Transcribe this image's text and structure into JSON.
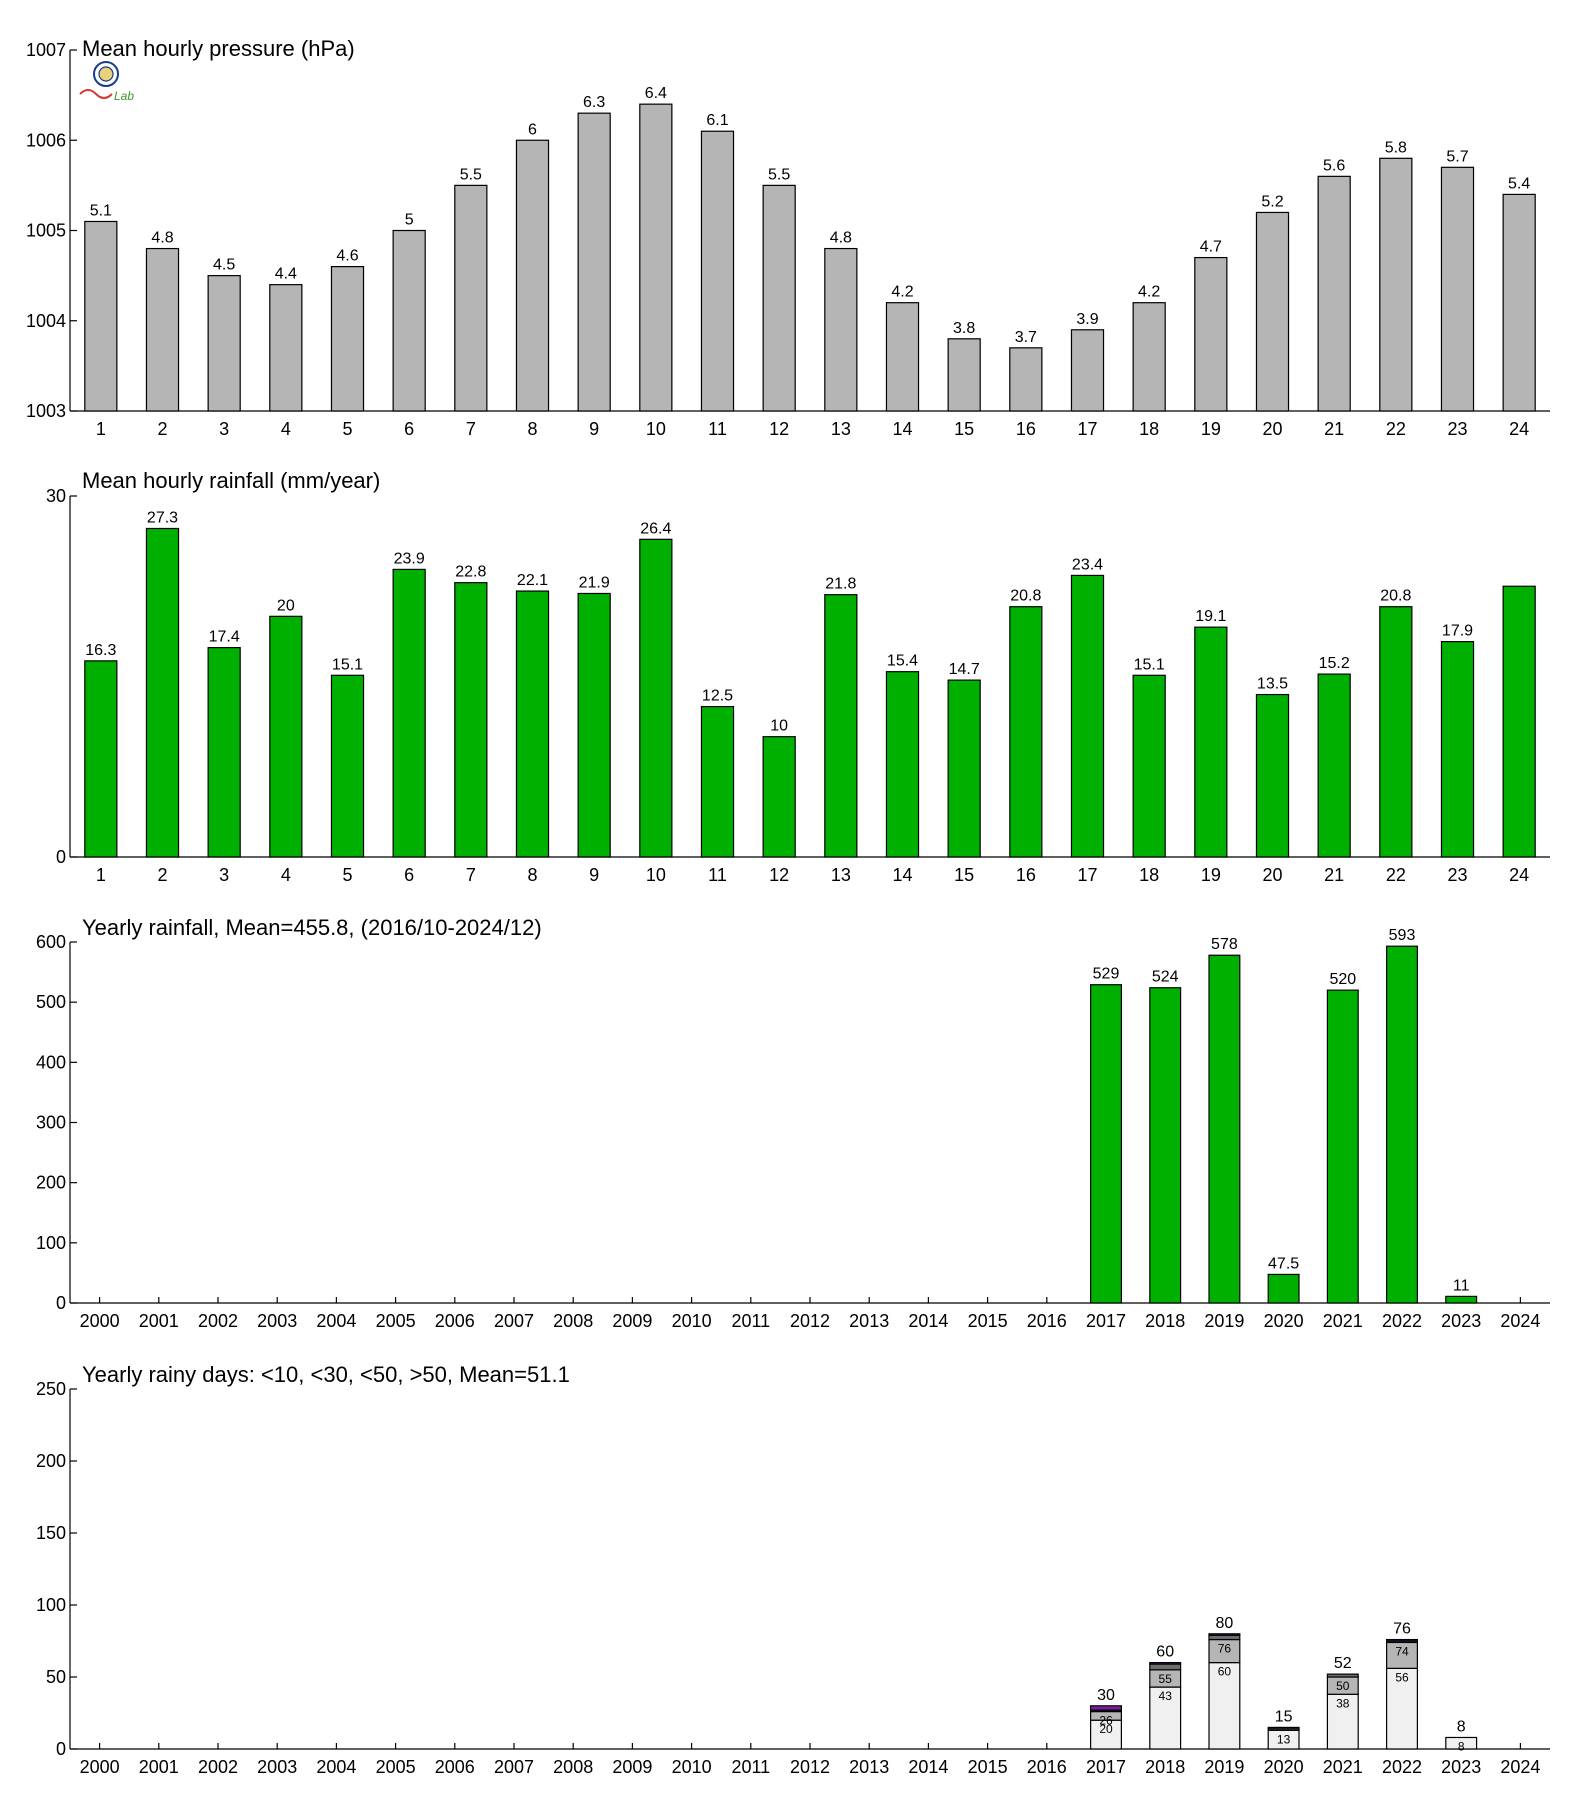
{
  "colors": {
    "pressure_bar": "#b5b5b5",
    "rain_bar": "#00b000",
    "days_lt10": "#f0f0f0",
    "days_lt30": "#b5b5b5",
    "days_lt50": "#6e6e6e",
    "days_gt50": "#7a1fa2"
  },
  "logo": {
    "icon": "station-seal-logo",
    "text": "Lab"
  },
  "chart_data": [
    {
      "type": "bar",
      "title": "Mean hourly pressure (hPa)",
      "categories": [
        "1",
        "2",
        "3",
        "4",
        "5",
        "6",
        "7",
        "8",
        "9",
        "10",
        "11",
        "12",
        "13",
        "14",
        "15",
        "16",
        "17",
        "18",
        "19",
        "20",
        "21",
        "22",
        "23",
        "24"
      ],
      "values": [
        1005.1,
        1004.8,
        1004.5,
        1004.4,
        1004.6,
        1005.0,
        1005.5,
        1006.0,
        1006.3,
        1006.4,
        1006.1,
        1005.5,
        1004.8,
        1004.2,
        1003.8,
        1003.7,
        1003.9,
        1004.2,
        1004.7,
        1005.2,
        1005.6,
        1005.8,
        1005.7,
        1005.4
      ],
      "labels": [
        "5.1",
        "4.8",
        "4.5",
        "4.4",
        "4.6",
        "5",
        "5.5",
        "6",
        "6.3",
        "6.4",
        "6.1",
        "5.5",
        "4.8",
        "4.2",
        "3.8",
        "3.7",
        "3.9",
        "4.2",
        "4.7",
        "5.2",
        "5.6",
        "5.8",
        "5.7",
        "5.4"
      ],
      "ylim": [
        1003,
        1007
      ],
      "yticks": [
        "1003",
        "1004",
        "1005",
        "1006",
        "1007"
      ],
      "color": "pressure_bar"
    },
    {
      "type": "bar",
      "title": "Mean hourly rainfall (mm/year)",
      "categories": [
        "1",
        "2",
        "3",
        "4",
        "5",
        "6",
        "7",
        "8",
        "9",
        "10",
        "11",
        "12",
        "13",
        "14",
        "15",
        "16",
        "17",
        "18",
        "19",
        "20",
        "21",
        "22",
        "23",
        "24"
      ],
      "values": [
        16.3,
        27.3,
        17.4,
        20,
        15.1,
        23.9,
        22.8,
        22.1,
        21.9,
        26.4,
        12.5,
        10,
        21.8,
        15.4,
        14.7,
        20.8,
        23.4,
        15.1,
        19.1,
        13.5,
        15.2,
        20.8,
        17.9,
        22.5
      ],
      "labels": [
        "16.3",
        "27.3",
        "17.4",
        "20",
        "15.1",
        "23.9",
        "22.8",
        "22.1",
        "21.9",
        "26.4",
        "12.5",
        "10",
        "21.8",
        "15.4",
        "14.7",
        "20.8",
        "23.4",
        "15.1",
        "19.1",
        "13.5",
        "15.2",
        "20.8",
        "17.9",
        ""
      ],
      "ylim": [
        0,
        30
      ],
      "yticks": [
        "0",
        "30"
      ],
      "color": "rain_bar"
    },
    {
      "type": "bar",
      "title": "Yearly rainfall, Mean=455.8, (2016/10-2024/12)",
      "categories": [
        "2000",
        "2001",
        "2002",
        "2003",
        "2004",
        "2005",
        "2006",
        "2007",
        "2008",
        "2009",
        "2010",
        "2011",
        "2012",
        "2013",
        "2014",
        "2015",
        "2016",
        "2017",
        "2018",
        "2019",
        "2020",
        "2021",
        "2022",
        "2023",
        "2024"
      ],
      "values": [
        0,
        0,
        0,
        0,
        0,
        0,
        0,
        0,
        0,
        0,
        0,
        0,
        0,
        0,
        0,
        0,
        0,
        529,
        524,
        578,
        47.5,
        520,
        593,
        11,
        0
      ],
      "labels": [
        "",
        "",
        "",
        "",
        "",
        "",
        "",
        "",
        "",
        "",
        "",
        "",
        "",
        "",
        "",
        "",
        "",
        "529",
        "524",
        "578",
        "47.5",
        "520",
        "593",
        "11",
        ""
      ],
      "ylim": [
        0,
        600
      ],
      "yticks": [
        "0",
        "100",
        "200",
        "300",
        "400",
        "500",
        "600"
      ],
      "color": "rain_bar"
    },
    {
      "type": "bar",
      "title": "Yearly rainy days: <10, <30, <50, >50, Mean=51.1",
      "categories": [
        "2000",
        "2001",
        "2002",
        "2003",
        "2004",
        "2005",
        "2006",
        "2007",
        "2008",
        "2009",
        "2010",
        "2011",
        "2012",
        "2013",
        "2014",
        "2015",
        "2016",
        "2017",
        "2018",
        "2019",
        "2020",
        "2021",
        "2022",
        "2023",
        "2024"
      ],
      "stacked": true,
      "series": [
        {
          "name": "<10",
          "color": "days_lt10",
          "values": [
            0,
            0,
            0,
            0,
            0,
            0,
            0,
            0,
            0,
            0,
            0,
            0,
            0,
            0,
            0,
            0,
            0,
            20,
            43,
            60,
            13,
            38,
            56,
            8,
            0
          ]
        },
        {
          "name": "<30",
          "color": "days_lt30",
          "values": [
            0,
            0,
            0,
            0,
            0,
            0,
            0,
            0,
            0,
            0,
            0,
            0,
            0,
            0,
            0,
            0,
            0,
            6,
            12,
            16,
            1,
            12,
            18,
            0,
            0
          ]
        },
        {
          "name": "<50",
          "color": "days_lt50",
          "values": [
            0,
            0,
            0,
            0,
            0,
            0,
            0,
            0,
            0,
            0,
            0,
            0,
            0,
            0,
            0,
            0,
            0,
            1,
            4,
            3,
            1,
            2,
            1,
            0,
            0
          ]
        },
        {
          "name": ">50",
          "color": "days_gt50",
          "values": [
            0,
            0,
            0,
            0,
            0,
            0,
            0,
            0,
            0,
            0,
            0,
            0,
            0,
            0,
            0,
            0,
            0,
            3,
            1,
            1,
            0,
            0,
            1,
            0,
            0
          ]
        }
      ],
      "totals": [
        "",
        "",
        "",
        "",
        "",
        "",
        "",
        "",
        "",
        "",
        "",
        "",
        "",
        "",
        "",
        "",
        "",
        "30",
        "60",
        "80",
        "15",
        "52",
        "76",
        "8",
        ""
      ],
      "inner_labels_lt10": [
        "",
        "",
        "",
        "",
        "",
        "",
        "",
        "",
        "",
        "",
        "",
        "",
        "",
        "",
        "",
        "",
        "",
        "20",
        "43",
        "60",
        "13",
        "38",
        "56",
        "8",
        ""
      ],
      "inner_labels_lt30": [
        "",
        "",
        "",
        "",
        "",
        "",
        "",
        "",
        "",
        "",
        "",
        "",
        "",
        "",
        "",
        "",
        "",
        "26",
        "55",
        "76",
        "",
        "50",
        "74",
        "",
        ""
      ],
      "ylim": [
        0,
        250
      ],
      "yticks": [
        "0",
        "50",
        "100",
        "150",
        "200",
        "250"
      ]
    }
  ]
}
